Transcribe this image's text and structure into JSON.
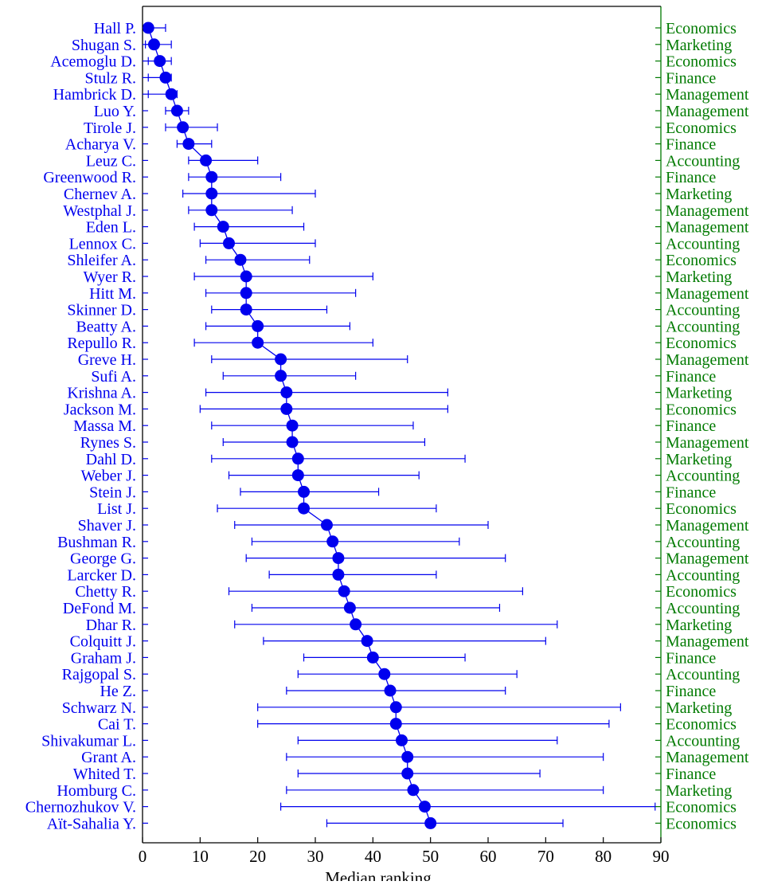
{
  "chart_data": {
    "type": "scatter",
    "xlabel": "Median ranking",
    "xlim": [
      0,
      90
    ],
    "xticks": [
      0,
      10,
      20,
      30,
      40,
      50,
      60,
      70,
      80,
      90
    ],
    "grid": false,
    "colors": {
      "points": "#0000ee",
      "fields": "#007a00",
      "axes": "#000000"
    },
    "researchers": [
      {
        "name": "Hall P.",
        "field": "Economics",
        "median": 1,
        "low": 0.5,
        "high": 4
      },
      {
        "name": "Shugan S.",
        "field": "Marketing",
        "median": 2,
        "low": 0.5,
        "high": 5
      },
      {
        "name": "Acemoglu D.",
        "field": "Economics",
        "median": 3,
        "low": 1,
        "high": 5
      },
      {
        "name": "Stulz R.",
        "field": "Finance",
        "median": 4,
        "low": 1,
        "high": 5
      },
      {
        "name": "Hambrick D.",
        "field": "Management",
        "median": 5,
        "low": 1,
        "high": 6
      },
      {
        "name": "Luo Y.",
        "field": "Management",
        "median": 6,
        "low": 4,
        "high": 8
      },
      {
        "name": "Tirole J.",
        "field": "Economics",
        "median": 7,
        "low": 4,
        "high": 13
      },
      {
        "name": "Acharya V.",
        "field": "Finance",
        "median": 8,
        "low": 6,
        "high": 12
      },
      {
        "name": "Leuz C.",
        "field": "Accounting",
        "median": 11,
        "low": 8,
        "high": 20
      },
      {
        "name": "Greenwood R.",
        "field": "Finance",
        "median": 12,
        "low": 8,
        "high": 24
      },
      {
        "name": "Chernev A.",
        "field": "Marketing",
        "median": 12,
        "low": 7,
        "high": 30
      },
      {
        "name": "Westphal J.",
        "field": "Management",
        "median": 12,
        "low": 8,
        "high": 26
      },
      {
        "name": "Eden L.",
        "field": "Management",
        "median": 14,
        "low": 9,
        "high": 28
      },
      {
        "name": "Lennox C.",
        "field": "Accounting",
        "median": 15,
        "low": 10,
        "high": 30
      },
      {
        "name": "Shleifer A.",
        "field": "Economics",
        "median": 17,
        "low": 11,
        "high": 29
      },
      {
        "name": "Wyer R.",
        "field": "Marketing",
        "median": 18,
        "low": 9,
        "high": 40
      },
      {
        "name": "Hitt M.",
        "field": "Management",
        "median": 18,
        "low": 11,
        "high": 37
      },
      {
        "name": "Skinner D.",
        "field": "Accounting",
        "median": 18,
        "low": 12,
        "high": 32
      },
      {
        "name": "Beatty A.",
        "field": "Accounting",
        "median": 20,
        "low": 11,
        "high": 36
      },
      {
        "name": "Repullo R.",
        "field": "Economics",
        "median": 20,
        "low": 9,
        "high": 40
      },
      {
        "name": "Greve H.",
        "field": "Management",
        "median": 24,
        "low": 12,
        "high": 46
      },
      {
        "name": "Sufi A.",
        "field": "Finance",
        "median": 24,
        "low": 14,
        "high": 37
      },
      {
        "name": "Krishna A.",
        "field": "Marketing",
        "median": 25,
        "low": 11,
        "high": 53
      },
      {
        "name": "Jackson M.",
        "field": "Economics",
        "median": 25,
        "low": 10,
        "high": 53
      },
      {
        "name": "Massa M.",
        "field": "Finance",
        "median": 26,
        "low": 12,
        "high": 47
      },
      {
        "name": "Rynes S.",
        "field": "Management",
        "median": 26,
        "low": 14,
        "high": 49
      },
      {
        "name": "Dahl D.",
        "field": "Marketing",
        "median": 27,
        "low": 12,
        "high": 56
      },
      {
        "name": "Weber J.",
        "field": "Accounting",
        "median": 27,
        "low": 15,
        "high": 48
      },
      {
        "name": "Stein J.",
        "field": "Finance",
        "median": 28,
        "low": 17,
        "high": 41
      },
      {
        "name": "List J.",
        "field": "Economics",
        "median": 28,
        "low": 13,
        "high": 51
      },
      {
        "name": "Shaver J.",
        "field": "Management",
        "median": 32,
        "low": 16,
        "high": 60
      },
      {
        "name": "Bushman R.",
        "field": "Accounting",
        "median": 33,
        "low": 19,
        "high": 55
      },
      {
        "name": "George G.",
        "field": "Management",
        "median": 34,
        "low": 18,
        "high": 63
      },
      {
        "name": "Larcker D.",
        "field": "Accounting",
        "median": 34,
        "low": 22,
        "high": 51
      },
      {
        "name": "Chetty R.",
        "field": "Economics",
        "median": 35,
        "low": 15,
        "high": 66
      },
      {
        "name": "DeFond M.",
        "field": "Accounting",
        "median": 36,
        "low": 19,
        "high": 62
      },
      {
        "name": "Dhar R.",
        "field": "Marketing",
        "median": 37,
        "low": 16,
        "high": 72
      },
      {
        "name": "Colquitt J.",
        "field": "Management",
        "median": 39,
        "low": 21,
        "high": 70
      },
      {
        "name": "Graham J.",
        "field": "Finance",
        "median": 40,
        "low": 28,
        "high": 56
      },
      {
        "name": "Rajgopal S.",
        "field": "Accounting",
        "median": 42,
        "low": 27,
        "high": 65
      },
      {
        "name": "He Z.",
        "field": "Finance",
        "median": 43,
        "low": 25,
        "high": 63
      },
      {
        "name": "Schwarz N.",
        "field": "Marketing",
        "median": 44,
        "low": 20,
        "high": 83
      },
      {
        "name": "Cai T.",
        "field": "Economics",
        "median": 44,
        "low": 20,
        "high": 81
      },
      {
        "name": "Shivakumar L.",
        "field": "Accounting",
        "median": 45,
        "low": 27,
        "high": 72
      },
      {
        "name": "Grant A.",
        "field": "Management",
        "median": 46,
        "low": 25,
        "high": 80
      },
      {
        "name": "Whited T.",
        "field": "Finance",
        "median": 46,
        "low": 27,
        "high": 69
      },
      {
        "name": "Homburg C.",
        "field": "Marketing",
        "median": 47,
        "low": 25,
        "high": 80
      },
      {
        "name": "Chernozhukov V.",
        "field": "Economics",
        "median": 49,
        "low": 24,
        "high": 89
      },
      {
        "name": "Aït-Sahalia Y.",
        "field": "Economics",
        "median": 50,
        "low": 32,
        "high": 73
      }
    ]
  }
}
